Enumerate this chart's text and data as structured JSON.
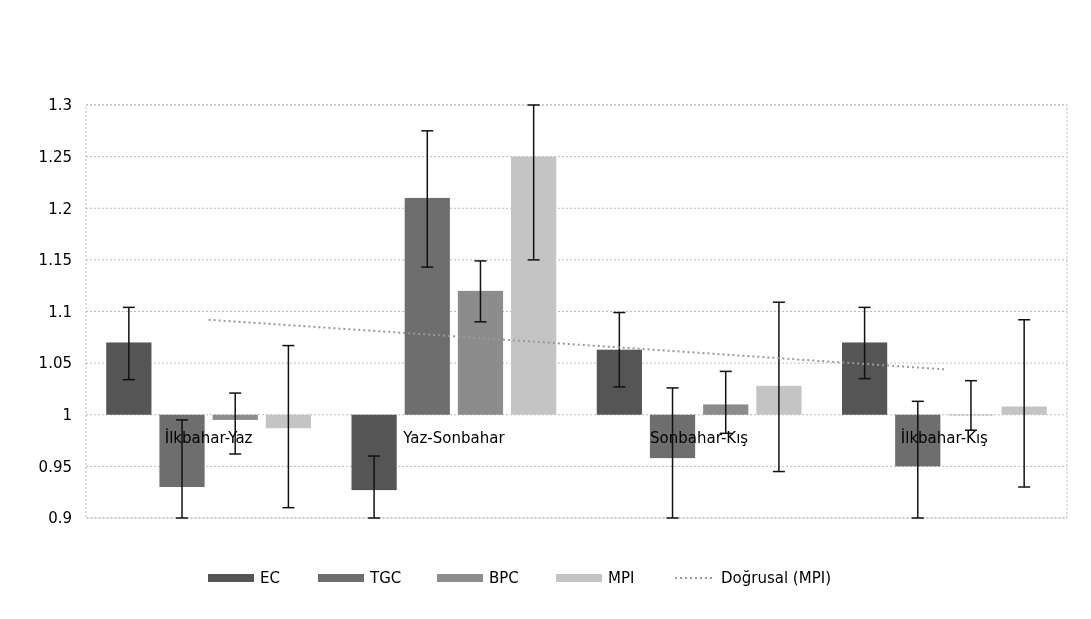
{
  "chart_data": {
    "type": "bar",
    "categories": [
      "İlkbahar-Yaz",
      "Yaz-Sonbahar",
      "Sonbahar-Kış",
      "İlkbahar-Kış"
    ],
    "series": [
      {
        "name": "EC",
        "color": "#555555",
        "base": [
          1,
          1,
          1,
          1
        ],
        "values": [
          0.07,
          -0.073,
          0.063,
          0.07
        ],
        "errors": [
          [
            1.034,
            1.104
          ],
          [
            0.9,
            0.96
          ],
          [
            1.027,
            1.099
          ],
          [
            1.035,
            1.104
          ]
        ]
      },
      {
        "name": "TGC",
        "color": "#6e6e6e",
        "base": [
          1,
          1,
          1,
          1
        ],
        "values": [
          -0.07,
          0.21,
          -0.042,
          -0.05
        ],
        "errors": [
          [
            0.9,
            0.995
          ],
          [
            1.143,
            1.275
          ],
          [
            0.9,
            1.026
          ],
          [
            0.9,
            1.013
          ]
        ]
      },
      {
        "name": "BPC",
        "color": "#8c8c8c",
        "base": [
          1,
          1,
          1,
          1
        ],
        "values": [
          -0.005,
          0.12,
          0.01,
          0.0
        ],
        "errors": [
          [
            0.962,
            1.021
          ],
          [
            1.09,
            1.149
          ],
          [
            0.982,
            1.042
          ],
          [
            0.985,
            1.033
          ]
        ]
      },
      {
        "name": "MPI",
        "color": "#c4c4c4",
        "base": [
          1,
          1,
          1,
          1
        ],
        "values": [
          -0.013,
          0.25,
          0.028,
          0.008
        ],
        "errors": [
          [
            0.91,
            1.067
          ],
          [
            1.15,
            1.3
          ],
          [
            0.945,
            1.109
          ],
          [
            0.93,
            1.092
          ]
        ]
      },
      {
        "name": "Doğrusal (MPI)",
        "type": "line",
        "color": "#999999",
        "line_style": "dotted",
        "x": [
          "İlkbahar-Yaz",
          "Yaz-Sonbahar",
          "Sonbahar-Kış",
          "İlkbahar-Kış"
        ],
        "values": [
          1.092,
          1.076,
          1.06,
          1.044
        ]
      }
    ],
    "ylim": [
      0.9,
      1.3
    ],
    "yticks": [
      0.9,
      0.95,
      1,
      1.05,
      1.1,
      1.15,
      1.2,
      1.25,
      1.3
    ],
    "grid": "y",
    "legend": "bottom"
  }
}
